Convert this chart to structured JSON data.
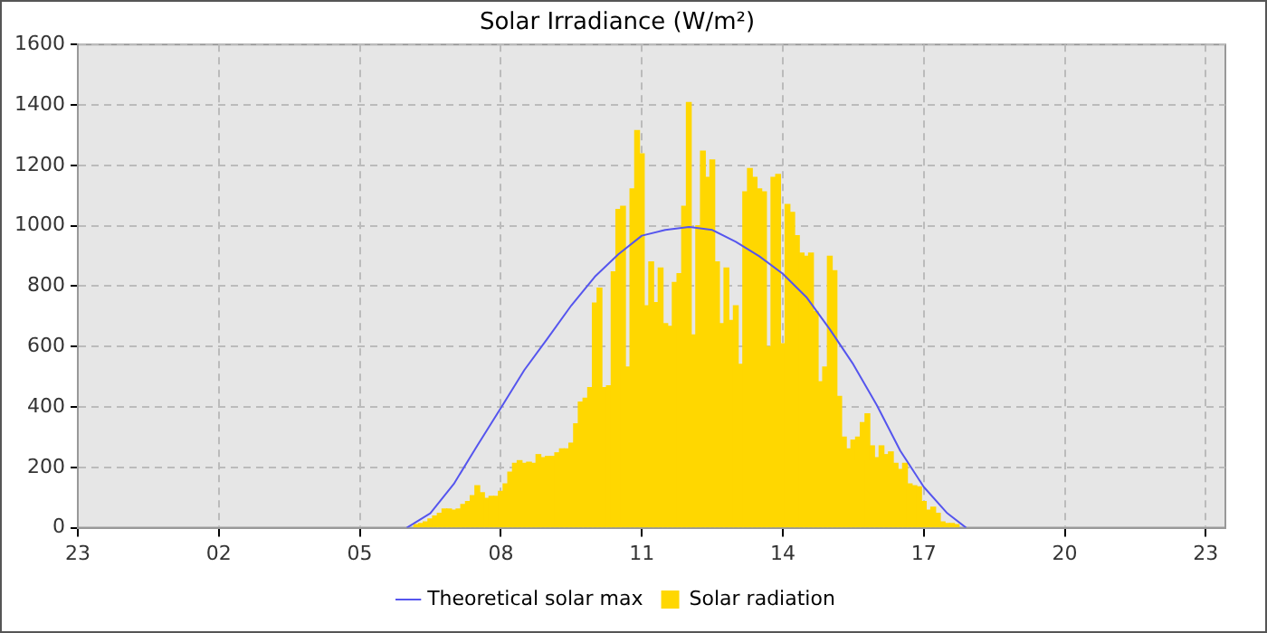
{
  "chart_data": {
    "type": "bar",
    "title": "Solar Irradiance (W/m²)",
    "xlim": [
      "--01-01T23:00",
      "--01-02T23:25"
    ],
    "xticks": [
      {
        "value": "--01-01T23:00",
        "label": "23"
      },
      {
        "value": "--01-02T02:00",
        "label": "02"
      },
      {
        "value": "--01-02T05:00",
        "label": "05"
      },
      {
        "value": "--01-02T08:00",
        "label": "08"
      },
      {
        "value": "--01-02T11:00",
        "label": "11"
      },
      {
        "value": "--01-02T14:00",
        "label": "14"
      },
      {
        "value": "--01-02T17:00",
        "label": "17"
      },
      {
        "value": "--01-02T20:00",
        "label": "20"
      },
      {
        "value": "--01-02T23:00",
        "label": "23"
      }
    ],
    "ylim": [
      0,
      1600
    ],
    "yticks": [
      0,
      200,
      400,
      600,
      800,
      1000,
      1200,
      1400,
      1600
    ],
    "grid": true,
    "legend": "bottom",
    "series": [
      {
        "name": "Theoretical solar max",
        "type": "line",
        "color": "#5555ee",
        "marker": "none",
        "line_style": "solid",
        "x": [
          "--01-02T06:00",
          "--01-02T06:30",
          "--01-02T07:00",
          "--01-02T07:30",
          "--01-02T08:00",
          "--01-02T08:30",
          "--01-02T09:00",
          "--01-02T09:30",
          "--01-02T10:00",
          "--01-02T10:30",
          "--01-02T11:00",
          "--01-02T11:30",
          "--01-02T12:00",
          "--01-02T12:30",
          "--01-02T13:00",
          "--01-02T13:30",
          "--01-02T14:00",
          "--01-02T14:30",
          "--01-02T15:00",
          "--01-02T15:30",
          "--01-02T16:00",
          "--01-02T16:30",
          "--01-02T17:00",
          "--01-02T17:30",
          "--01-02T17:54"
        ],
        "values": [
          0,
          48,
          145,
          272,
          396,
          522,
          628,
          736,
          831,
          905,
          967,
          986,
          996,
          986,
          947,
          899,
          841,
          764,
          657,
          541,
          406,
          255,
          135,
          48,
          0
        ]
      },
      {
        "name": "Solar radiation",
        "color": "#ffd700",
        "x": [
          "--01-02T06:12",
          "--01-02T06:18",
          "--01-02T06:24",
          "--01-02T06:30",
          "--01-02T06:36",
          "--01-02T06:42",
          "--01-02T06:48",
          "--01-02T06:54",
          "--01-02T07:00",
          "--01-02T07:06",
          "--01-02T07:12",
          "--01-02T07:18",
          "--01-02T07:24",
          "--01-02T07:30",
          "--01-02T07:36",
          "--01-02T07:42",
          "--01-02T07:48",
          "--01-02T07:54",
          "--01-02T08:00",
          "--01-02T08:06",
          "--01-02T08:12",
          "--01-02T08:18",
          "--01-02T08:24",
          "--01-02T08:30",
          "--01-02T08:36",
          "--01-02T08:42",
          "--01-02T08:48",
          "--01-02T08:54",
          "--01-02T09:00",
          "--01-02T09:06",
          "--01-02T09:12",
          "--01-02T09:18",
          "--01-02T09:24",
          "--01-02T09:30",
          "--01-02T09:36",
          "--01-02T09:42",
          "--01-02T09:48",
          "--01-02T09:54",
          "--01-02T10:00",
          "--01-02T10:06",
          "--01-02T10:12",
          "--01-02T10:18",
          "--01-02T10:24",
          "--01-02T10:30",
          "--01-02T10:36",
          "--01-02T10:42",
          "--01-02T10:48",
          "--01-02T10:54",
          "--01-02T11:00",
          "--01-02T11:06",
          "--01-02T11:12",
          "--01-02T11:18",
          "--01-02T11:24",
          "--01-02T11:30",
          "--01-02T11:36",
          "--01-02T11:42",
          "--01-02T11:48",
          "--01-02T11:54",
          "--01-02T12:00",
          "--01-02T12:06",
          "--01-02T12:12",
          "--01-02T12:18",
          "--01-02T12:24",
          "--01-02T12:30",
          "--01-02T12:36",
          "--01-02T12:42",
          "--01-02T12:48",
          "--01-02T12:54",
          "--01-02T13:00",
          "--01-02T13:06",
          "--01-02T13:12",
          "--01-02T13:18",
          "--01-02T13:24",
          "--01-02T13:30",
          "--01-02T13:36",
          "--01-02T13:42",
          "--01-02T13:48",
          "--01-02T13:54",
          "--01-02T14:00",
          "--01-02T14:06",
          "--01-02T14:12",
          "--01-02T14:18",
          "--01-02T14:24",
          "--01-02T14:30",
          "--01-02T14:36",
          "--01-02T14:42",
          "--01-02T14:48",
          "--01-02T14:54",
          "--01-02T15:00",
          "--01-02T15:06",
          "--01-02T15:12",
          "--01-02T15:18",
          "--01-02T15:24",
          "--01-02T15:30",
          "--01-02T15:36",
          "--01-02T15:42",
          "--01-02T15:48",
          "--01-02T15:54",
          "--01-02T16:00",
          "--01-02T16:06",
          "--01-02T16:12",
          "--01-02T16:18",
          "--01-02T16:24",
          "--01-02T16:30",
          "--01-02T16:36",
          "--01-02T16:42",
          "--01-02T16:48",
          "--01-02T16:54",
          "--01-02T17:00",
          "--01-02T17:06",
          "--01-02T17:12",
          "--01-02T17:18",
          "--01-02T17:24",
          "--01-02T17:30",
          "--01-02T17:36",
          "--01-02T17:42"
        ],
        "values": [
          10,
          14,
          19,
          29,
          39,
          48,
          62,
          62,
          58,
          62,
          77,
          87,
          106,
          139,
          116,
          97,
          104,
          104,
          120,
          145,
          184,
          213,
          222,
          213,
          217,
          213,
          242,
          232,
          236,
          236,
          248,
          261,
          261,
          280,
          344,
          416,
          429,
          464,
          744,
          793,
          464,
          470,
          847,
          1054,
          1064,
          532,
          1122,
          1315,
          1238,
          735,
          880,
          745,
          860,
          676,
          667,
          812,
          841,
          1064,
          1408,
          638,
          1000,
          1247,
          1160,
          1218,
          880,
          676,
          860,
          686,
          735,
          541,
          1112,
          1189,
          1160,
          1122,
          1112,
          599,
          1160,
          1170,
          609,
          1070,
          1044,
          967,
          909,
          899,
          909,
          716,
          483,
          532,
          899,
          851,
          435,
          300,
          261,
          290,
          300,
          348,
          377,
          271,
          232,
          271,
          242,
          251,
          213,
          193,
          213,
          145,
          139,
          135,
          87,
          58,
          68,
          48,
          19,
          14,
          14,
          10
        ]
      }
    ]
  }
}
